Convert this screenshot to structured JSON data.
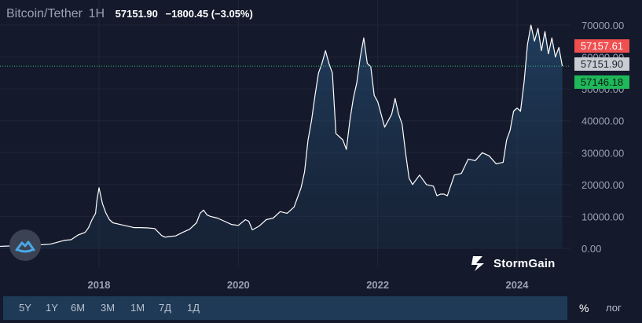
{
  "header": {
    "pair": "Bitcoin/Tether",
    "timeframe": "1H",
    "last_price": "57151.90",
    "change": "−1800.45 (−3.05%)"
  },
  "price_tags": {
    "ask": "57157.61",
    "last": "57151.90",
    "bid": "57146.18"
  },
  "brand": {
    "name": "StormGain"
  },
  "toolbar": {
    "ranges": [
      "5Y",
      "1Y",
      "6M",
      "3M",
      "1M",
      "7Д",
      "1Д"
    ],
    "percent": "%",
    "log": "лог"
  },
  "colors": {
    "background": "#141a2b",
    "line": "#ffffff",
    "area": "#1e3a56",
    "ask": "#ef4f4f",
    "bid": "#1fb85a",
    "last_line": "#3fb37f"
  },
  "chart_data": {
    "type": "area",
    "title": "Bitcoin/Tether",
    "xlabel": "",
    "ylabel": "",
    "ylim": [
      0,
      70000
    ],
    "yticks": [
      "0.00",
      "10000.00",
      "20000.00",
      "30000.00",
      "40000.00",
      "50000.00",
      "60000.00",
      "70000.00"
    ],
    "xticks": [
      "2018",
      "2020",
      "2022",
      "2024"
    ],
    "grid": true,
    "last_value": 57151.9,
    "series": [
      {
        "x": [
          2016.2,
          2016.6,
          2016.9,
          2017.1,
          2017.3,
          2017.5,
          2017.6,
          2017.7,
          2017.8,
          2017.85,
          2017.9,
          2017.95,
          2017.97,
          2018.0,
          2018.05,
          2018.1,
          2018.15,
          2018.2,
          2018.3,
          2018.4,
          2018.5,
          2018.6,
          2018.7,
          2018.8,
          2018.9,
          2018.95,
          2019.0,
          2019.1,
          2019.2,
          2019.3,
          2019.4,
          2019.45,
          2019.5,
          2019.55,
          2019.6,
          2019.7,
          2019.8,
          2019.9,
          2020.0,
          2020.1,
          2020.15,
          2020.2,
          2020.3,
          2020.4,
          2020.5,
          2020.6,
          2020.7,
          2020.8,
          2020.85,
          2020.9,
          2020.95,
          2021.0,
          2021.05,
          2021.1,
          2021.15,
          2021.2,
          2021.25,
          2021.3,
          2021.35,
          2021.4,
          2021.45,
          2021.5,
          2021.55,
          2021.6,
          2021.65,
          2021.7,
          2021.75,
          2021.8,
          2021.85,
          2021.9,
          2021.95,
          2022.0,
          2022.1,
          2022.2,
          2022.25,
          2022.3,
          2022.35,
          2022.4,
          2022.45,
          2022.5,
          2022.6,
          2022.7,
          2022.8,
          2022.85,
          2022.9,
          2022.95,
          2023.0,
          2023.1,
          2023.2,
          2023.3,
          2023.4,
          2023.5,
          2023.6,
          2023.7,
          2023.8,
          2023.85,
          2023.9,
          2023.95,
          2024.0,
          2024.05,
          2024.1,
          2024.15,
          2024.2,
          2024.25,
          2024.3,
          2024.35,
          2024.4,
          2024.45,
          2024.5,
          2024.55,
          2024.6,
          2024.65
        ],
        "values": [
          500,
          650,
          900,
          1000,
          1300,
          2500,
          2700,
          4200,
          5000,
          6500,
          9000,
          11000,
          15000,
          19000,
          14000,
          11000,
          9000,
          8000,
          7500,
          7000,
          6500,
          6500,
          6400,
          6200,
          4000,
          3500,
          3700,
          3900,
          5000,
          6000,
          8000,
          11000,
          12000,
          10500,
          10000,
          9500,
          8500,
          7500,
          7200,
          9000,
          8500,
          5800,
          7000,
          9000,
          9500,
          11500,
          11000,
          13000,
          16000,
          19000,
          24000,
          34000,
          40000,
          48000,
          55000,
          58000,
          62000,
          58000,
          55000,
          36000,
          35000,
          34000,
          31000,
          40000,
          47000,
          52000,
          60000,
          66000,
          58000,
          57000,
          48000,
          46000,
          38000,
          42000,
          47000,
          42000,
          39000,
          30000,
          22000,
          20000,
          23000,
          20000,
          19500,
          16500,
          17000,
          17000,
          16500,
          23000,
          23500,
          28000,
          27500,
          30000,
          29000,
          26500,
          27000,
          34000,
          37000,
          43000,
          44000,
          43000,
          52000,
          64000,
          70000,
          65000,
          69000,
          62000,
          68000,
          61000,
          66000,
          60000,
          63000,
          57151.9
        ]
      }
    ]
  }
}
